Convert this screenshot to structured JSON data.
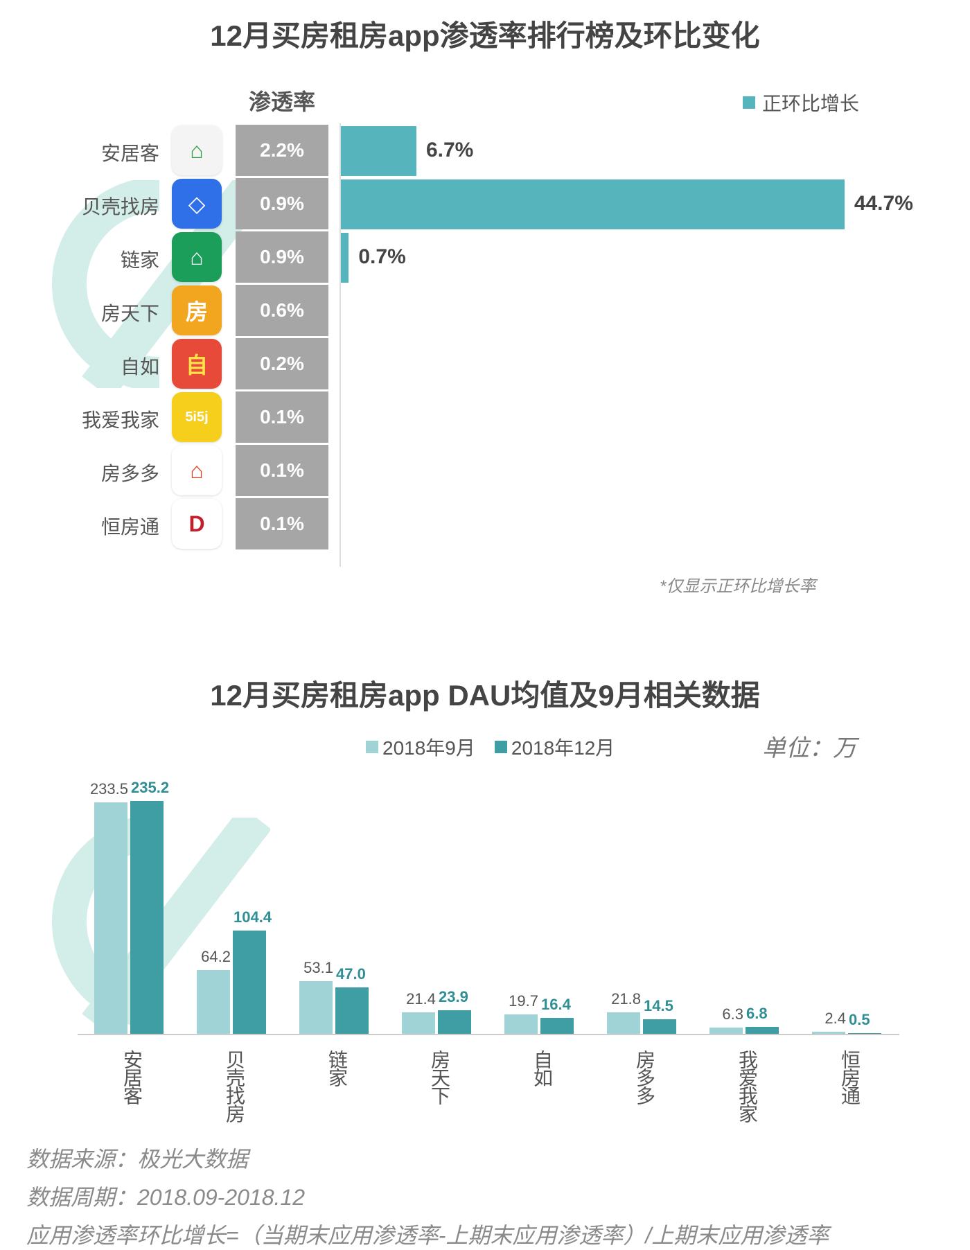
{
  "watermark": "极光大数据",
  "colors": {
    "growth_bar": "#55b4bc",
    "penetration_cell": "#a6a6a6",
    "sep_series": "#9fd3d6",
    "dec_series": "#3e9ea4",
    "dec_label": "#2f8f95"
  },
  "chart_data": [
    {
      "type": "bar",
      "orientation": "horizontal",
      "title": "12月买房租房app渗透率排行榜及环比变化",
      "column_header": "渗透率",
      "legend": {
        "label": "正环比增长",
        "placement": "top-right"
      },
      "categories": [
        "安居客",
        "贝壳找房",
        "链家",
        "房天下",
        "自如",
        "我爱我家",
        "房多多",
        "恒房通"
      ],
      "icons": [
        "anjuke-icon",
        "beike-icon",
        "lianjia-icon",
        "fang-icon",
        "ziroom-icon",
        "5i5j-icon",
        "fangdd-icon",
        "hengfangtong-icon"
      ],
      "penetration": [
        "2.2%",
        "0.9%",
        "0.9%",
        "0.6%",
        "0.2%",
        "0.1%",
        "0.1%",
        "0.1%"
      ],
      "growth": [
        6.7,
        44.7,
        0.7,
        null,
        null,
        null,
        null,
        null
      ],
      "growth_labels": [
        "6.7%",
        "44.7%",
        "0.7%",
        "",
        "",
        "",
        "",
        ""
      ],
      "note": "*仅显示正环比增长率"
    },
    {
      "type": "bar",
      "title": "12月买房租房app DAU均值及9月相关数据",
      "unit": "单位：万",
      "legend_placement": "top",
      "categories": [
        "安居客",
        "贝壳找房",
        "链家",
        "房天下",
        "自如",
        "房多多",
        "我爱我家",
        "恒房通"
      ],
      "series": [
        {
          "name": "2018年9月",
          "values": [
            233.5,
            64.2,
            53.1,
            21.4,
            19.7,
            21.8,
            6.3,
            2.4
          ]
        },
        {
          "name": "2018年12月",
          "values": [
            235.2,
            104.4,
            47.0,
            23.9,
            16.4,
            14.5,
            6.8,
            0.5
          ]
        }
      ],
      "labels": [
        [
          "233.5",
          "64.2",
          "53.1",
          "21.4",
          "19.7",
          "21.8",
          "6.3",
          "2.4"
        ],
        [
          "235.2",
          "104.4",
          "47.0",
          "23.9",
          "16.4",
          "14.5",
          "6.8",
          "0.5"
        ]
      ]
    }
  ],
  "footer": {
    "source": "数据来源：极光大数据",
    "period": "数据周期：2018.09-2018.12",
    "formula": "应用渗透率环比增长=（当期末应用渗透率-上期末应用渗透率）/上期末应用渗透率"
  }
}
